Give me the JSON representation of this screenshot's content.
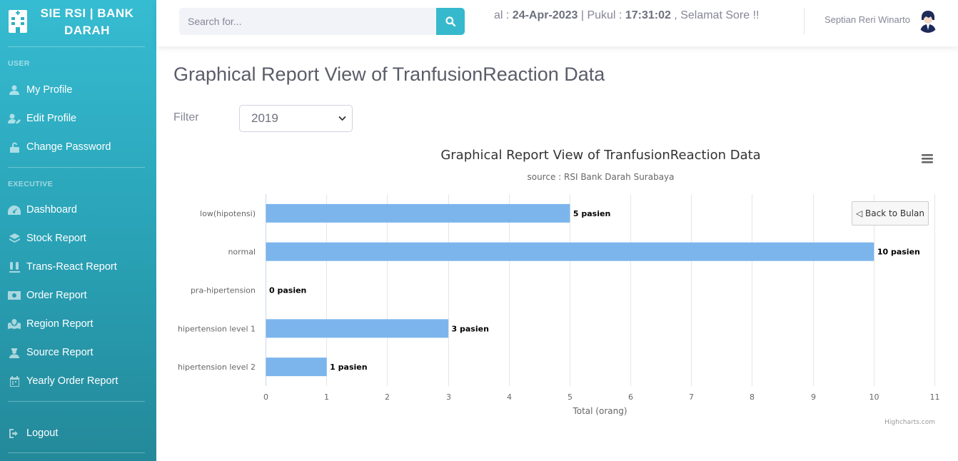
{
  "brand": {
    "title": "SIE RSI | BANK DARAH"
  },
  "sidebar": {
    "sections": [
      {
        "label": "USER"
      },
      {
        "label": "EXECUTIVE"
      }
    ],
    "items": [
      {
        "label": "My Profile",
        "icon": "user-icon"
      },
      {
        "label": "Edit Profile",
        "icon": "user-edit-icon"
      },
      {
        "label": "Change Password",
        "icon": "unlock-icon"
      },
      {
        "label": "Dashboard",
        "icon": "tachometer-icon"
      },
      {
        "label": "Stock Report",
        "icon": "layers-icon"
      },
      {
        "label": "Trans-React Report",
        "icon": "vials-icon"
      },
      {
        "label": "Order Report",
        "icon": "money-bill-icon"
      },
      {
        "label": "Region Report",
        "icon": "map-icon"
      },
      {
        "label": "Source Report",
        "icon": "user-nurse-icon"
      },
      {
        "label": "Yearly Order Report",
        "icon": "calendar-icon"
      },
      {
        "label": "Logout",
        "icon": "sign-out-icon"
      }
    ]
  },
  "topbar": {
    "search_placeholder": "Search for...",
    "date_prefix": "al : ",
    "date": "24-Apr-2023",
    "time_prefix": " | Pukul : ",
    "time": "17:31:02",
    "greeting": " , Selamat Sore !!",
    "user_name": "Septian Reri Winarto"
  },
  "page": {
    "title": "Graphical Report View of TranfusionReaction Data",
    "filter_label": "Filter",
    "filter_value": "2019"
  },
  "chart_data": {
    "type": "bar",
    "orientation": "horizontal",
    "title": "Graphical Report View of TranfusionReaction Data",
    "subtitle": "source : RSI Bank Darah Surabaya",
    "categories": [
      "low(hipotensi)",
      "normal",
      "pra-hipertension",
      "hipertension level 1",
      "hipertension level 2"
    ],
    "values": [
      5,
      10,
      0,
      3,
      1
    ],
    "data_labels": [
      "5 pasien",
      "10 pasien",
      "0 pasien",
      "3 pasien",
      "1 pasien"
    ],
    "xlabel": "Total (orang)",
    "ylabel": "",
    "xlim": [
      0,
      11
    ],
    "ticks": [
      "0",
      "1",
      "2",
      "3",
      "4",
      "5",
      "6",
      "7",
      "8",
      "9",
      "10",
      "11"
    ],
    "grid": true,
    "bar_color": "#7cb5ec",
    "back_button": "◁ Back to Bulan",
    "credits": "Highcharts.com"
  },
  "colors": {
    "sidebar_top": "#36bcd2",
    "sidebar_bottom": "#23899a",
    "accent": "#36b9cc"
  }
}
